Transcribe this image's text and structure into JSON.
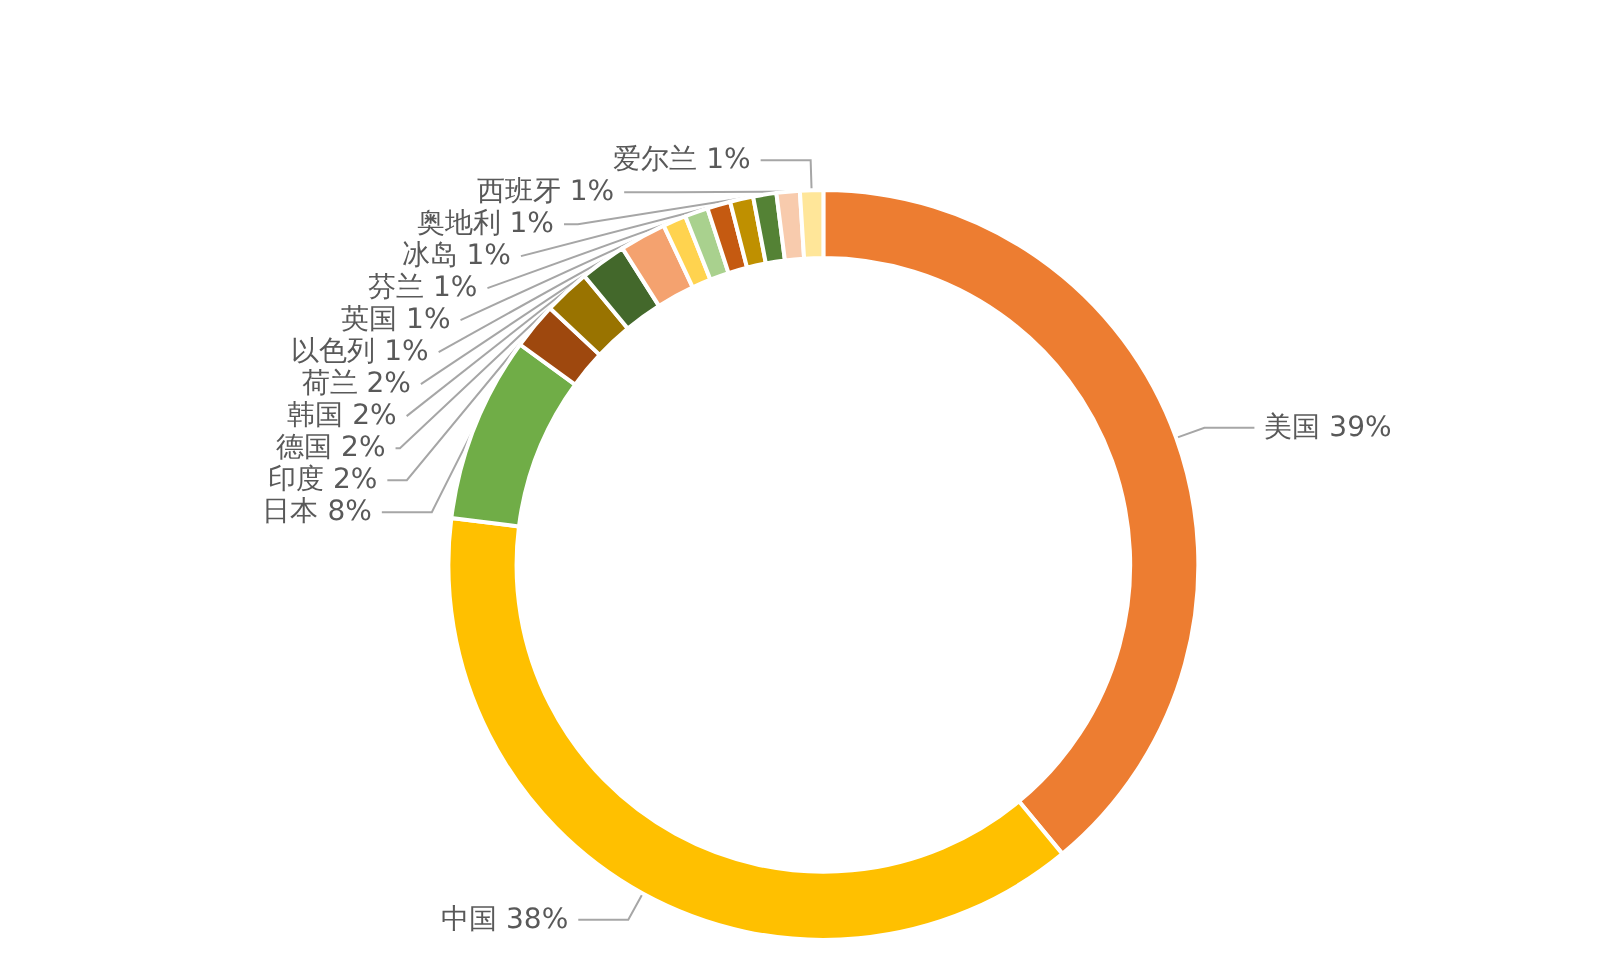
{
  "chart_data": {
    "type": "donut",
    "categories": [
      "美国",
      "中国",
      "日本",
      "印度",
      "德国",
      "韩国",
      "荷兰",
      "以色列",
      "英国",
      "芬兰",
      "冰岛",
      "奥地利",
      "西班牙",
      "爱尔兰"
    ],
    "values": [
      39,
      38,
      8,
      2,
      2,
      2,
      2,
      1,
      1,
      1,
      1,
      1,
      1,
      1
    ],
    "colors": [
      "#ed7d31",
      "#ffc000",
      "#70ad47",
      "#9e480e",
      "#997300",
      "#43682b",
      "#f4a26f",
      "#ffd34f",
      "#a9d18e",
      "#c55a11",
      "#bf9000",
      "#548235",
      "#f8cbad",
      "#ffe699"
    ],
    "value_labels": [
      "39%",
      "38%",
      "8%",
      "2%",
      "2%",
      "2%",
      "2%",
      "1%",
      "1%",
      "1%",
      "1%",
      "1%",
      "1%",
      "1%"
    ]
  }
}
